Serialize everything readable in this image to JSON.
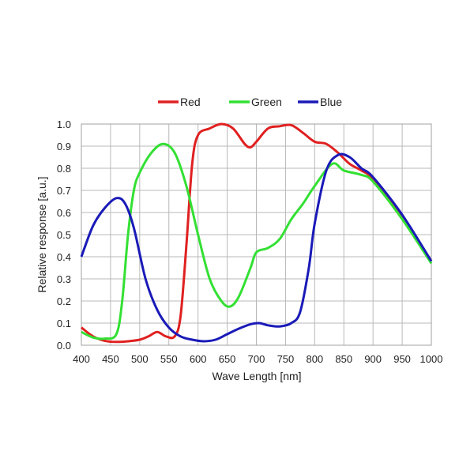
{
  "chart_data": {
    "type": "line",
    "title": "",
    "xlabel": "Wave Length [nm]",
    "ylabel": "Relative response [a.u.]",
    "xlim": [
      400,
      1000
    ],
    "ylim": [
      0,
      1.0
    ],
    "xticks": [
      "400",
      "450",
      "500",
      "550",
      "600",
      "650",
      "700",
      "750",
      "800",
      "850",
      "900",
      "950",
      "1000"
    ],
    "yticks": [
      "0.0",
      "0.1",
      "0.2",
      "0.3",
      "0.4",
      "0.5",
      "0.6",
      "0.7",
      "0.8",
      "0.9",
      "1.0"
    ],
    "grid": true,
    "legend_position": "top-center",
    "series": [
      {
        "name": "Red",
        "color": "#e02020",
        "x": [
          400,
          420,
          440,
          460,
          480,
          500,
          515,
          530,
          545,
          560,
          570,
          580,
          590,
          600,
          620,
          640,
          660,
          680,
          690,
          700,
          720,
          740,
          760,
          780,
          800,
          820,
          840,
          860,
          880,
          900,
          950,
          1000
        ],
        "y": [
          0.08,
          0.04,
          0.02,
          0.015,
          0.018,
          0.025,
          0.04,
          0.06,
          0.04,
          0.04,
          0.13,
          0.45,
          0.82,
          0.95,
          0.98,
          1.0,
          0.98,
          0.91,
          0.895,
          0.92,
          0.98,
          0.99,
          0.995,
          0.96,
          0.92,
          0.91,
          0.87,
          0.82,
          0.79,
          0.75,
          0.58,
          0.38
        ]
      },
      {
        "name": "Green",
        "color": "#33e033",
        "x": [
          400,
          420,
          440,
          460,
          470,
          480,
          490,
          500,
          520,
          540,
          560,
          580,
          600,
          620,
          640,
          655,
          670,
          690,
          700,
          720,
          740,
          760,
          780,
          800,
          830,
          850,
          880,
          900,
          950,
          1000
        ],
        "y": [
          0.06,
          0.035,
          0.03,
          0.05,
          0.2,
          0.5,
          0.7,
          0.78,
          0.87,
          0.91,
          0.87,
          0.72,
          0.5,
          0.3,
          0.2,
          0.175,
          0.22,
          0.35,
          0.42,
          0.44,
          0.48,
          0.57,
          0.64,
          0.72,
          0.82,
          0.79,
          0.77,
          0.74,
          0.57,
          0.37
        ]
      },
      {
        "name": "Blue",
        "color": "#1a1ab8",
        "x": [
          400,
          420,
          440,
          460,
          475,
          490,
          510,
          530,
          550,
          570,
          590,
          610,
          630,
          650,
          670,
          690,
          705,
          720,
          740,
          760,
          775,
          790,
          800,
          820,
          840,
          860,
          880,
          900,
          950,
          1000
        ],
        "y": [
          0.4,
          0.54,
          0.62,
          0.665,
          0.64,
          0.53,
          0.3,
          0.16,
          0.08,
          0.04,
          0.025,
          0.018,
          0.025,
          0.05,
          0.075,
          0.095,
          0.1,
          0.09,
          0.085,
          0.1,
          0.15,
          0.35,
          0.55,
          0.79,
          0.86,
          0.85,
          0.8,
          0.76,
          0.59,
          0.38
        ]
      }
    ]
  }
}
